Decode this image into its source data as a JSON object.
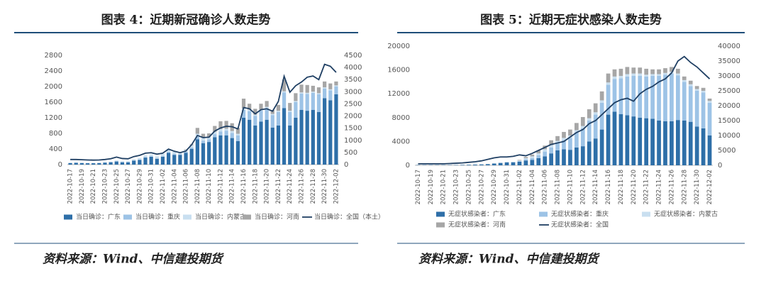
{
  "chart_data": [
    {
      "type": "bar",
      "title": "图表 4：近期新冠确诊人数走势",
      "source": "资料来源：Wind、中信建投期货",
      "categories": [
        "2022-10-17",
        null,
        "2022-10-19",
        null,
        "2022-10-21",
        null,
        "2022-10-23",
        null,
        "2022-10-25",
        null,
        "2022-10-27",
        null,
        "2022-10-29",
        null,
        "2022-10-31",
        null,
        "2022-11-02",
        null,
        "2022-11-04",
        null,
        "2022-11-06",
        null,
        "2022-11-08",
        null,
        "2022-11-10",
        null,
        "2022-11-12",
        null,
        "2022-11-14",
        null,
        "2022-11-16",
        null,
        "2022-11-18",
        null,
        "2022-11-20",
        null,
        "2022-11-22",
        null,
        "2022-11-24",
        null,
        "2022-11-26",
        null,
        "2022-11-28",
        null,
        "2022-11-30",
        null,
        "2022-12-02"
      ],
      "ylim": [
        0,
        2800
      ],
      "yticks": [
        0,
        400,
        800,
        1200,
        1600,
        2000,
        2400,
        2800
      ],
      "y2lim": [
        0,
        4500
      ],
      "y2ticks": [
        0,
        500,
        1000,
        1500,
        2000,
        2500,
        3000,
        3500,
        4000,
        4500
      ],
      "series": [
        {
          "name": "当日确诊：广东",
          "color": "#2e6fa8",
          "values": [
            40,
            45,
            40,
            35,
            35,
            40,
            50,
            60,
            80,
            60,
            60,
            100,
            120,
            180,
            200,
            150,
            200,
            300,
            250,
            250,
            300,
            400,
            650,
            550,
            580,
            700,
            750,
            750,
            680,
            600,
            1200,
            1150,
            1000,
            1100,
            1150,
            950,
            1000,
            1450,
            1000,
            1200,
            1400,
            1380,
            1400,
            1350,
            1700,
            1650,
            1800
          ]
        },
        {
          "name": "当日确诊：重庆",
          "color": "#9dc3e6",
          "values": [
            5,
            5,
            5,
            5,
            5,
            5,
            5,
            5,
            5,
            5,
            5,
            5,
            10,
            10,
            10,
            10,
            15,
            20,
            20,
            20,
            30,
            40,
            60,
            60,
            70,
            80,
            100,
            120,
            130,
            150,
            200,
            220,
            250,
            280,
            300,
            320,
            350,
            400,
            350,
            400,
            420,
            430,
            440,
            450,
            250,
            250,
            200
          ]
        },
        {
          "name": "当日确诊：内蒙古",
          "color": "#c9dff0",
          "values": [
            0,
            0,
            0,
            0,
            0,
            0,
            5,
            10,
            20,
            20,
            20,
            30,
            40,
            50,
            50,
            50,
            60,
            80,
            60,
            50,
            50,
            60,
            80,
            80,
            70,
            60,
            60,
            50,
            50,
            40,
            40,
            40,
            30,
            30,
            30,
            30,
            30,
            30,
            30,
            30,
            30,
            30,
            30,
            30,
            30,
            30,
            30
          ]
        },
        {
          "name": "当日确诊：河南",
          "color": "#a6a6a6",
          "values": [
            0,
            0,
            0,
            0,
            0,
            0,
            0,
            0,
            0,
            0,
            0,
            0,
            0,
            0,
            0,
            0,
            0,
            0,
            0,
            0,
            10,
            20,
            150,
            100,
            80,
            150,
            200,
            200,
            200,
            150,
            250,
            150,
            150,
            150,
            150,
            100,
            150,
            300,
            200,
            200,
            200,
            200,
            150,
            150,
            150,
            150,
            100
          ]
        },
        {
          "name": "当日确诊：全国（本土）",
          "color": "#1f3f63",
          "type": "line",
          "axis": "y2",
          "values": [
            210,
            210,
            200,
            190,
            185,
            190,
            210,
            240,
            310,
            250,
            240,
            330,
            380,
            470,
            490,
            430,
            470,
            640,
            550,
            490,
            560,
            820,
            1200,
            1110,
            1130,
            1380,
            1510,
            1580,
            1560,
            1470,
            2350,
            2300,
            2090,
            2260,
            2300,
            2200,
            2600,
            3640,
            2980,
            3250,
            3400,
            3600,
            3650,
            3500,
            4130,
            4050,
            3800
          ]
        }
      ]
    },
    {
      "type": "bar",
      "title": "图表 5：近期无症状感染人数走势",
      "source": "资料来源：Wind、中信建投期货",
      "categories": [
        "2022-10-17",
        null,
        "2022-10-19",
        null,
        "2022-10-21",
        null,
        "2022-10-23",
        null,
        "2022-10-25",
        null,
        "2022-10-27",
        null,
        "2022-10-29",
        null,
        "2022-10-31",
        null,
        "2022-11-02",
        null,
        "2022-11-04",
        null,
        "2022-11-06",
        null,
        "2022-11-08",
        null,
        "2022-11-10",
        null,
        "2022-11-12",
        null,
        "2022-11-14",
        null,
        "2022-11-16",
        null,
        "2022-11-18",
        null,
        "2022-11-20",
        null,
        "2022-11-22",
        null,
        "2022-11-24",
        null,
        "2022-11-26",
        null,
        "2022-11-28",
        null,
        "2022-11-30",
        null,
        "2022-12-02"
      ],
      "ylim": [
        0,
        20000
      ],
      "yticks": [
        0,
        4000,
        8000,
        12000,
        16000,
        20000
      ],
      "y2lim": [
        0,
        40000
      ],
      "y2ticks": [
        0,
        5000,
        10000,
        15000,
        20000,
        25000,
        30000,
        35000,
        40000
      ],
      "series": [
        {
          "name": "无症状感染者：广东",
          "color": "#2e6fa8",
          "values": [
            50,
            50,
            50,
            50,
            50,
            50,
            60,
            80,
            100,
            120,
            150,
            200,
            300,
            400,
            500,
            500,
            600,
            800,
            900,
            1200,
            1500,
            2000,
            2500,
            2700,
            2600,
            3000,
            3200,
            4000,
            4500,
            6000,
            8500,
            9000,
            8600,
            8400,
            8200,
            8000,
            7900,
            7800,
            7500,
            7400,
            7400,
            7600,
            7500,
            7300,
            6500,
            6200,
            5000
          ]
        },
        {
          "name": "无症状感染者：重庆",
          "color": "#9dc3e6",
          "values": [
            0,
            0,
            0,
            0,
            0,
            0,
            0,
            0,
            0,
            0,
            0,
            0,
            0,
            0,
            0,
            50,
            100,
            200,
            300,
            500,
            800,
            1000,
            1200,
            1500,
            2000,
            2500,
            3000,
            3500,
            4000,
            4500,
            5000,
            5500,
            6000,
            6500,
            6800,
            7000,
            7000,
            7200,
            7500,
            7800,
            8000,
            7500,
            6500,
            6000,
            6000,
            6000,
            5500
          ]
        },
        {
          "name": "无症状感染者：内蒙古",
          "color": "#c9dff0",
          "values": [
            0,
            0,
            0,
            0,
            0,
            0,
            0,
            0,
            0,
            0,
            0,
            0,
            0,
            0,
            0,
            50,
            100,
            200,
            300,
            300,
            400,
            400,
            400,
            400,
            400,
            400,
            400,
            400,
            400,
            400,
            400,
            400,
            400,
            400,
            400,
            400,
            300,
            300,
            300,
            300,
            300,
            300,
            300,
            300,
            300,
            300,
            300
          ]
        },
        {
          "name": "无症状感染者：河南",
          "color": "#a6a6a6",
          "values": [
            0,
            0,
            0,
            0,
            0,
            0,
            0,
            0,
            0,
            0,
            0,
            0,
            0,
            0,
            0,
            0,
            100,
            200,
            300,
            500,
            600,
            800,
            800,
            1000,
            1000,
            1200,
            1500,
            1500,
            1500,
            1500,
            1500,
            1200,
            1200,
            1200,
            1000,
            1000,
            1000,
            800,
            800,
            800,
            800,
            800,
            600,
            600,
            500,
            500,
            400
          ]
        },
        {
          "name": "无症状感染者：全国",
          "color": "#1f3f63",
          "type": "line",
          "axis": "y2",
          "values": [
            500,
            500,
            500,
            500,
            500,
            600,
            700,
            800,
            1000,
            1200,
            1500,
            2000,
            2500,
            2800,
            2800,
            3000,
            3500,
            3200,
            4000,
            5000,
            6000,
            7000,
            7500,
            8000,
            9500,
            11000,
            12000,
            14000,
            15000,
            17000,
            19000,
            21000,
            22000,
            22500,
            21500,
            24000,
            25500,
            26500,
            28000,
            29000,
            31000,
            35000,
            36500,
            34500,
            33000,
            31000,
            29000
          ]
        }
      ]
    }
  ]
}
